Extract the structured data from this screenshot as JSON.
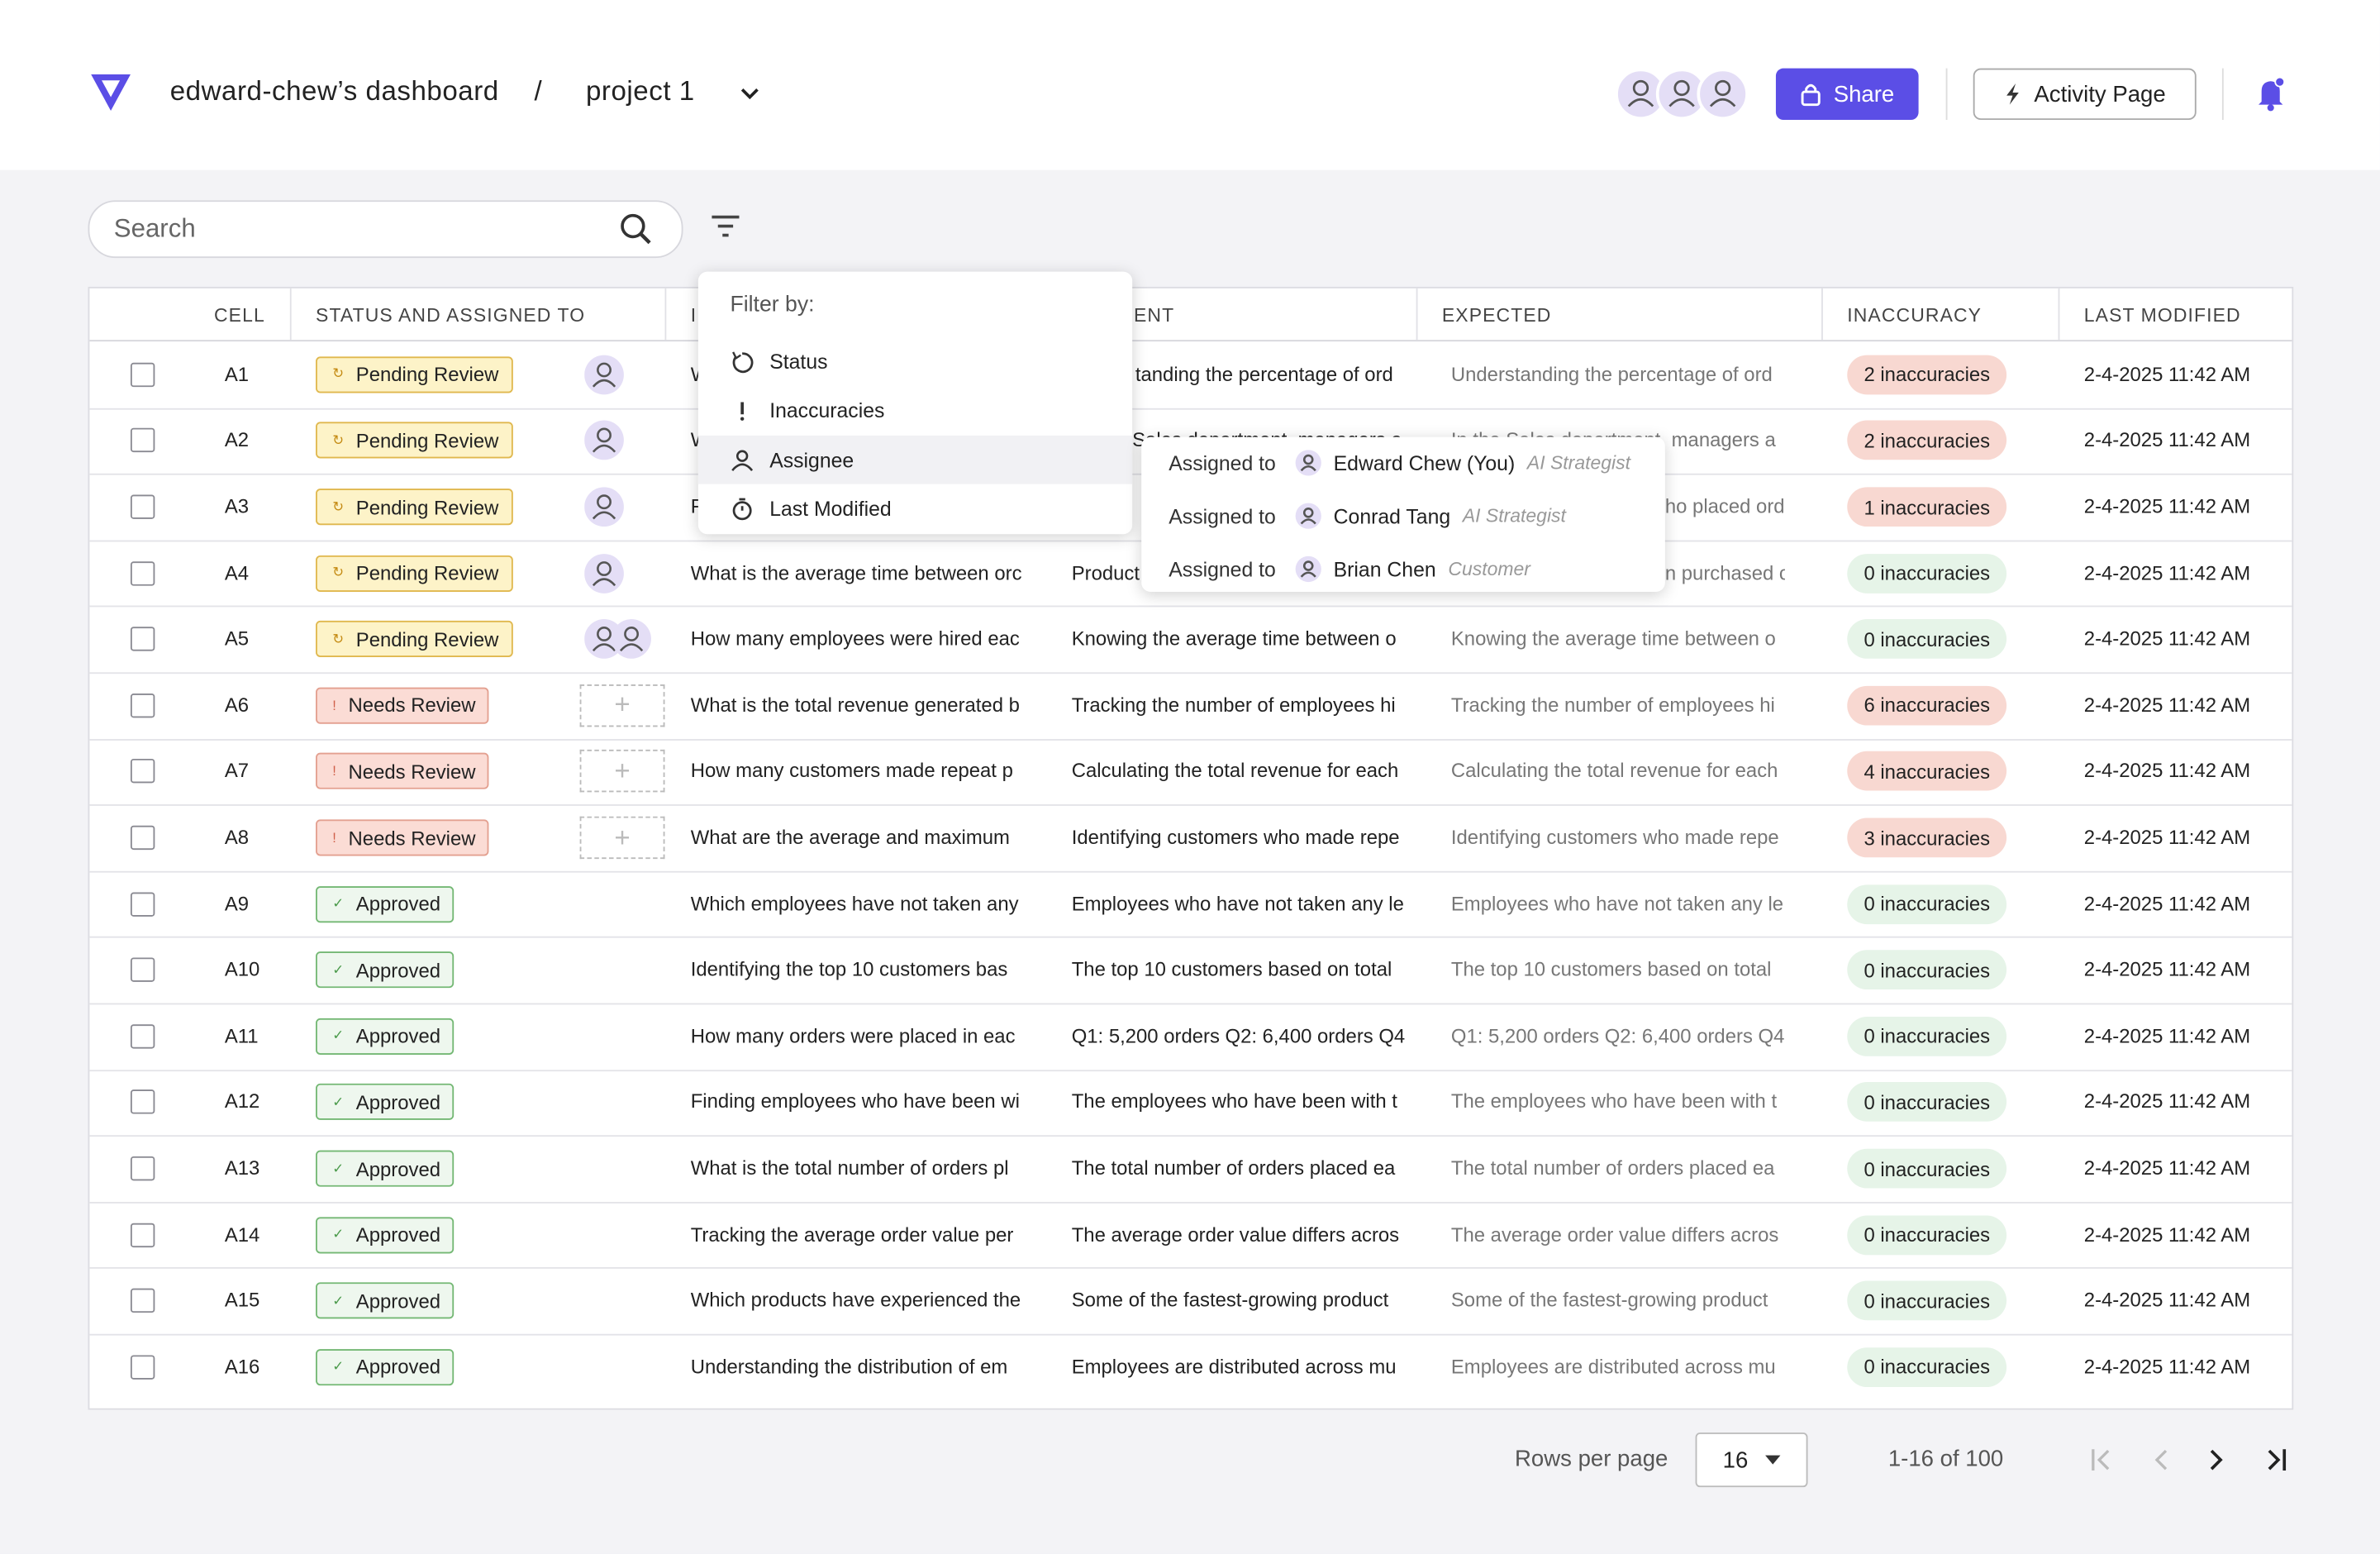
{
  "header": {
    "brand": "edward-chew’s dashboard",
    "separator": "/",
    "project": "project 1",
    "share": "Share",
    "activity": "Activity Page"
  },
  "search": {
    "placeholder": "Search"
  },
  "filter_menu": {
    "title": "Filter by:",
    "options": [
      "Status",
      "Inaccuracies",
      "Assignee",
      "Last Modified"
    ]
  },
  "assignee_menu": {
    "items": [
      {
        "prefix": "Assigned to",
        "name": "Edward Chew (You)",
        "role": "AI Strategist"
      },
      {
        "prefix": "Assigned to",
        "name": "Conrad Tang",
        "role": "AI Strategist"
      },
      {
        "prefix": "Assigned to",
        "name": "Brian Chen",
        "role": "Customer"
      }
    ]
  },
  "table": {
    "columns": [
      "CELL",
      "STATUS AND ASSIGNED TO",
      "I",
      "ENT",
      "EXPECTED",
      "INACCURACY",
      "LAST MODIFIED"
    ],
    "rows": [
      [
        "A1",
        "Pending Review",
        "W",
        "tanding the percentage of ord",
        "Understanding the percentage of ord",
        "2 inaccuracies",
        "2-4-2025 11:42 AM"
      ],
      [
        "A2",
        "Pending Review",
        "W",
        "Sales department, managers a",
        "In the Sales department, managers a",
        "2 inaccuracies",
        "2-4-2025 11:42 AM"
      ],
      [
        "A3",
        "Pending Review",
        "F",
        "t",
        "ho placed ord",
        "1 inaccuracies",
        "2-4-2025 11:42 AM"
      ],
      [
        "A4",
        "Pending Review",
        "What is the average time between orc",
        "Product",
        "n purchased c",
        "0 inaccuracies",
        "2-4-2025 11:42 AM"
      ],
      [
        "A5",
        "Pending Review",
        "How many employees were hired eac",
        "Knowing the average time between o",
        "Knowing the average time between o",
        "0 inaccuracies",
        "2-4-2025 11:42 AM"
      ],
      [
        "A6",
        "Needs Review",
        "What is the total revenue generated b",
        "Tracking the number of employees hi",
        "Tracking the number of employees hi",
        "6 inaccuracies",
        "2-4-2025 11:42 AM"
      ],
      [
        "A7",
        "Needs Review",
        "How many customers made repeat p",
        "Calculating the total revenue for each",
        "Calculating the total revenue for each",
        "4 inaccuracies",
        "2-4-2025 11:42 AM"
      ],
      [
        "A8",
        "Needs Review",
        "What are the average and maximum",
        "Identifying customers who made repe",
        "Identifying customers who made repe",
        "3 inaccuracies",
        "2-4-2025 11:42 AM"
      ],
      [
        "A9",
        "Approved",
        "Which employees have not taken any",
        "Employees who have not taken any le",
        "Employees who have not taken any le",
        "0 inaccuracies",
        "2-4-2025 11:42 AM"
      ],
      [
        "A10",
        "Approved",
        "Identifying the top 10 customers bas",
        "The top 10 customers based on total",
        "The top 10 customers based on total",
        "0 inaccuracies",
        "2-4-2025 11:42 AM"
      ],
      [
        "A11",
        "Approved",
        "How many orders were placed in eac",
        "Q1: 5,200 orders Q2: 6,400 orders Q4",
        "Q1: 5,200 orders Q2: 6,400 orders Q4",
        "0 inaccuracies",
        "2-4-2025 11:42 AM"
      ],
      [
        "A12",
        "Approved",
        "Finding employees who have been wi",
        "The employees who have been with t",
        "The employees who have been with t",
        "0 inaccuracies",
        "2-4-2025 11:42 AM"
      ],
      [
        "A13",
        "Approved",
        "What is the total number of orders pl",
        "The total number of orders placed ea",
        "The total number of orders placed ea",
        "0 inaccuracies",
        "2-4-2025 11:42 AM"
      ],
      [
        "A14",
        "Approved",
        "Tracking the average order value per",
        "The average order value differs acros",
        "The average order value differs acros",
        "0 inaccuracies",
        "2-4-2025 11:42 AM"
      ],
      [
        "A15",
        "Approved",
        "Which products have experienced the",
        "Some of the fastest-growing product",
        "Some of the fastest-growing product",
        "0 inaccuracies",
        "2-4-2025 11:42 AM"
      ],
      [
        "A16",
        "Approved",
        "Understanding the distribution of em",
        "Employees are distributed across mu",
        "Employees are distributed across mu",
        "0 inaccuracies",
        "2-4-2025 11:42 AM"
      ]
    ]
  },
  "pagination": {
    "label": "Rows per page",
    "rows_per_page": "16",
    "range": "1-16 of 100"
  }
}
